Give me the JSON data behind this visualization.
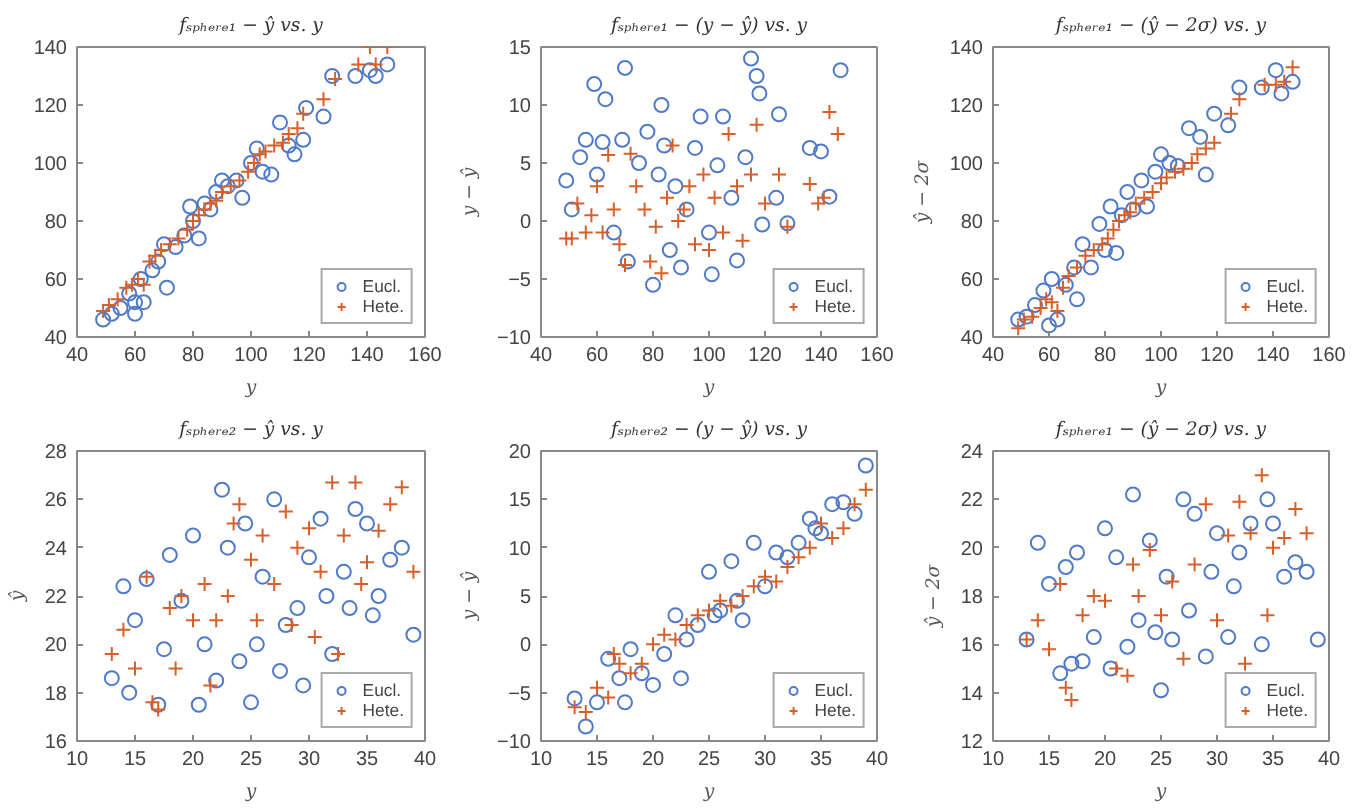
{
  "chart_data": [
    {
      "type": "scatter",
      "title": "fₛₚₕₑᵣₑ₁ − ŷ vs. y",
      "xlabel": "y",
      "xlim": [
        40,
        160
      ],
      "xticks": [
        40,
        60,
        80,
        100,
        120,
        140,
        160
      ],
      "ylim": [
        40,
        140
      ],
      "yticks": [
        40,
        60,
        80,
        100,
        120,
        140
      ],
      "legend": "bottom right",
      "series": [
        {
          "name": "Eucl.",
          "color": "#4f79c9",
          "marker": "circle",
          "x": [
            49,
            52,
            55,
            58,
            60,
            60,
            62,
            63,
            66,
            68,
            70,
            71,
            74,
            77,
            79,
            80,
            82,
            84,
            86,
            88,
            90,
            92,
            95,
            97,
            100,
            102,
            104,
            107,
            110,
            113,
            115,
            118,
            119,
            125,
            128,
            136,
            141,
            143,
            147
          ],
          "values": [
            46,
            48,
            50,
            55,
            48,
            52,
            60,
            52,
            63,
            66,
            72,
            57,
            71,
            75,
            85,
            80,
            74,
            86,
            84,
            90,
            94,
            92,
            94,
            88,
            100,
            105,
            97,
            96,
            114,
            106,
            103,
            108,
            119,
            116,
            130,
            130,
            132,
            130,
            134
          ]
        },
        {
          "name": "Hete.",
          "color": "#d95f2a",
          "marker": "cross",
          "x": [
            49,
            51,
            54,
            57,
            59,
            61,
            63,
            65,
            67,
            69,
            72,
            75,
            78,
            80,
            82,
            84,
            86,
            88,
            90,
            93,
            96,
            99,
            101,
            103,
            105,
            108,
            111,
            113,
            116,
            118,
            125,
            129,
            137,
            141,
            143,
            147
          ],
          "values": [
            49,
            51,
            53,
            57,
            58,
            60,
            58,
            66,
            68,
            70,
            72,
            74,
            77,
            80,
            82,
            84,
            86,
            87,
            90,
            92,
            94,
            97,
            100,
            103,
            104,
            106,
            107,
            110,
            112,
            117,
            122,
            129,
            134,
            140,
            134,
            140
          ]
        }
      ]
    },
    {
      "type": "scatter",
      "title": "fₛₚₕₑᵣₑ₁ − (y − ŷ) vs. y",
      "xlabel": "y",
      "ylabel": "y − ŷ",
      "xlim": [
        40,
        160
      ],
      "xticks": [
        40,
        60,
        80,
        100,
        120,
        140,
        160
      ],
      "ylim": [
        -10,
        15
      ],
      "yticks": [
        -10,
        -5,
        0,
        5,
        10,
        15
      ],
      "legend": "bottom right",
      "series": [
        {
          "name": "Eucl.",
          "color": "#4f79c9",
          "marker": "circle",
          "x": [
            49,
            51,
            54,
            56,
            59,
            60,
            62,
            63,
            66,
            69,
            70,
            71,
            75,
            78,
            80,
            82,
            83,
            84,
            86,
            88,
            90,
            92,
            95,
            97,
            100,
            101,
            103,
            105,
            108,
            110,
            113,
            115,
            117,
            118,
            119,
            124,
            125,
            128,
            136,
            140,
            143,
            147
          ],
          "values": [
            3.5,
            1,
            5.5,
            7,
            11.8,
            4,
            6.8,
            10.5,
            -1,
            7,
            13.2,
            -3.5,
            5,
            7.7,
            -5.5,
            4,
            10,
            6.5,
            -2.5,
            3,
            -4,
            1,
            6.3,
            9,
            -1,
            -4.6,
            4.8,
            9,
            2,
            -3.4,
            5.5,
            14,
            12.5,
            11,
            -0.3,
            2,
            9.2,
            -0.2,
            6.3,
            6,
            2.1,
            13
          ]
        },
        {
          "name": "Hete.",
          "color": "#d95f2a",
          "marker": "cross",
          "x": [
            49,
            51,
            53,
            56,
            58,
            60,
            62,
            64,
            66,
            68,
            70,
            72,
            74,
            77,
            79,
            81,
            83,
            85,
            87,
            89,
            91,
            93,
            95,
            98,
            100,
            102,
            105,
            107,
            110,
            112,
            115,
            117,
            120,
            125,
            128,
            136,
            139,
            141,
            143,
            146
          ],
          "values": [
            -1.5,
            -1.5,
            1.5,
            -1,
            0.5,
            3,
            -1,
            5.7,
            1,
            -2,
            -3.8,
            5.8,
            3,
            1,
            -3.5,
            -0.5,
            -4.5,
            2,
            6.5,
            0,
            1,
            3,
            -2,
            4,
            -2.5,
            2,
            -1,
            7.5,
            3,
            -1.7,
            4,
            8.3,
            1.5,
            4,
            -0.5,
            3.2,
            1.5,
            2,
            9.4,
            7.5
          ]
        }
      ]
    },
    {
      "type": "scatter",
      "title": "fₛₚₕₑᵣₑ₁ − (ŷ − 2σ) vs. y",
      "xlabel": "y",
      "ylabel": "ŷ − 2σ",
      "xlim": [
        40,
        160
      ],
      "xticks": [
        40,
        60,
        80,
        100,
        120,
        140,
        160
      ],
      "ylim": [
        40,
        140
      ],
      "yticks": [
        40,
        60,
        80,
        100,
        120,
        140
      ],
      "legend": "bottom right",
      "series": [
        {
          "name": "Eucl.",
          "color": "#4f79c9",
          "marker": "circle",
          "x": [
            49,
            52,
            55,
            58,
            60,
            61,
            63,
            66,
            69,
            70,
            72,
            75,
            78,
            80,
            82,
            84,
            86,
            88,
            90,
            93,
            95,
            98,
            100,
            103,
            106,
            110,
            114,
            116,
            119,
            124,
            128,
            136,
            141,
            143,
            147
          ],
          "values": [
            46,
            47,
            51,
            56,
            44,
            60,
            46,
            58,
            64,
            53,
            72,
            64,
            79,
            70,
            85,
            69,
            82,
            90,
            84,
            94,
            85,
            97,
            103,
            100,
            99,
            112,
            109,
            96,
            117,
            113,
            126,
            126,
            132,
            124,
            128
          ]
        },
        {
          "name": "Hete.",
          "color": "#d95f2a",
          "marker": "cross",
          "x": [
            49,
            51,
            54,
            57,
            59,
            61,
            63,
            65,
            67,
            70,
            73,
            76,
            79,
            81,
            83,
            85,
            87,
            89,
            91,
            94,
            97,
            100,
            102,
            105,
            108,
            111,
            113,
            116,
            119,
            125,
            128,
            137,
            141,
            144,
            147
          ],
          "values": [
            43,
            46,
            47,
            50,
            53,
            52,
            49,
            57,
            61,
            64,
            68,
            70,
            72,
            74,
            77,
            80,
            82,
            83,
            86,
            88,
            90,
            93,
            95,
            97,
            98,
            100,
            103,
            105,
            107,
            117,
            122,
            127,
            127,
            128,
            133
          ]
        }
      ]
    },
    {
      "type": "scatter",
      "title": "fₛₚₕₑᵣₑ₂ − ŷ vs. y",
      "xlabel": "y",
      "ylabel": "ŷ",
      "xlim": [
        10,
        40
      ],
      "xticks": [
        10,
        15,
        20,
        25,
        30,
        35,
        40
      ],
      "ylim": [
        16,
        28
      ],
      "yticks": [
        16,
        18,
        20,
        22,
        24,
        26,
        28
      ],
      "legend": "bottom right",
      "series": [
        {
          "name": "Eucl.",
          "color": "#4f79c9",
          "marker": "circle",
          "x": [
            13,
            14,
            14.5,
            15,
            16,
            17,
            17.5,
            18,
            19,
            20,
            20.5,
            21,
            22,
            22.5,
            23,
            24,
            24.5,
            25,
            25.5,
            26,
            27,
            27.5,
            28,
            29,
            29.5,
            30,
            31,
            31.5,
            32,
            33,
            33.5,
            34,
            35,
            35.5,
            36,
            37,
            38,
            39
          ],
          "values": [
            18.6,
            22.4,
            18,
            21,
            22.7,
            17.5,
            19.8,
            23.7,
            21.8,
            24.5,
            17.5,
            20,
            18.5,
            26.4,
            24,
            19.3,
            25,
            17.6,
            20,
            22.8,
            26,
            18.9,
            20.8,
            21.5,
            18.3,
            23.6,
            25.2,
            22,
            19.6,
            23,
            21.5,
            25.6,
            25,
            21.2,
            22,
            23.5,
            24,
            20.4
          ]
        },
        {
          "name": "Hete.",
          "color": "#d95f2a",
          "marker": "cross",
          "x": [
            13,
            14,
            15,
            16,
            16.5,
            17,
            18,
            18.5,
            19,
            20,
            21,
            21.5,
            22,
            23,
            23.5,
            24,
            25,
            25.5,
            26,
            27,
            28,
            28.5,
            29,
            30,
            30.5,
            31,
            32,
            32.5,
            33,
            34,
            34.5,
            35,
            36,
            37,
            38,
            39
          ],
          "values": [
            19.6,
            20.6,
            19,
            22.8,
            17.6,
            17.3,
            21.5,
            19,
            22,
            21,
            22.5,
            18.3,
            21,
            22,
            25,
            25.8,
            23.5,
            21,
            24.5,
            22.5,
            25.5,
            20.8,
            24,
            24.8,
            20.3,
            23,
            26.7,
            19.6,
            24.5,
            26.7,
            22.5,
            23.4,
            24.7,
            25.8,
            26.5,
            23
          ]
        }
      ]
    },
    {
      "type": "scatter",
      "title": "fₛₚₕₑᵣₑ₂ − (y − ŷ) vs. y",
      "xlabel": "y",
      "ylabel": "y − ŷ",
      "xlim": [
        10,
        40
      ],
      "xticks": [
        10,
        15,
        20,
        25,
        30,
        35,
        40
      ],
      "ylim": [
        -10,
        20
      ],
      "yticks": [
        -10,
        -5,
        0,
        5,
        10,
        15,
        20
      ],
      "legend": "bottom right",
      "series": [
        {
          "name": "Eucl.",
          "color": "#4f79c9",
          "marker": "circle",
          "x": [
            13,
            14,
            15,
            16,
            17,
            17.5,
            18,
            19,
            20,
            21,
            22,
            22.5,
            23,
            24,
            25,
            25.5,
            26,
            27,
            27.5,
            28,
            29,
            30,
            31,
            32,
            33,
            34,
            34.5,
            35,
            36,
            37,
            38,
            39
          ],
          "values": [
            -5.6,
            -8.5,
            -6,
            -1.5,
            -3.5,
            -6,
            -0.5,
            -3,
            -4.2,
            -1,
            3,
            -3.5,
            0.5,
            2,
            7.5,
            3,
            3.5,
            8.6,
            4.5,
            2.5,
            10.5,
            6,
            9.5,
            9,
            10.5,
            13,
            12,
            11.5,
            14.5,
            14.7,
            13.5,
            18.5
          ]
        },
        {
          "name": "Hete.",
          "color": "#d95f2a",
          "marker": "cross",
          "x": [
            13,
            14,
            15,
            16,
            16.5,
            17,
            18,
            19,
            20,
            21,
            22,
            23,
            24,
            25,
            26,
            27,
            28,
            29,
            30,
            31,
            32,
            33,
            34,
            35,
            36,
            37,
            38,
            39
          ],
          "values": [
            -6.5,
            -7,
            -4.5,
            -5.5,
            -1,
            -2,
            -3,
            -2,
            0,
            1,
            0.5,
            2,
            3,
            3.5,
            4.5,
            4,
            5,
            6,
            7,
            6.5,
            8,
            9,
            10,
            12.5,
            11,
            12,
            14.5,
            16
          ]
        }
      ]
    },
    {
      "type": "scatter",
      "title": "fₛₚₕₑᵣₑ₁ − (ŷ − 2σ) vs. y",
      "xlabel": "y",
      "ylabel": "ŷ − 2σ",
      "xlim": [
        10,
        40
      ],
      "xticks": [
        10,
        15,
        20,
        25,
        30,
        35,
        40
      ],
      "ylim": [
        12,
        24
      ],
      "yticks": [
        12,
        14,
        16,
        18,
        20,
        22,
        24
      ],
      "legend": "bottom right",
      "series": [
        {
          "name": "Eucl.",
          "color": "#4f79c9",
          "marker": "circle",
          "x": [
            13,
            14,
            15,
            16,
            16.5,
            17,
            17.5,
            18,
            19,
            20,
            20.5,
            21,
            22,
            22.5,
            23,
            24,
            24.5,
            25,
            25.5,
            26,
            27,
            27.5,
            28,
            29,
            29.5,
            30,
            31,
            31.5,
            32,
            33,
            34,
            34.5,
            35,
            36,
            37,
            38,
            39
          ],
          "values": [
            16.2,
            20.2,
            18.5,
            14.8,
            19.2,
            15.2,
            19.8,
            15.3,
            16.3,
            20.8,
            15,
            19.6,
            15.9,
            22.2,
            17,
            20.3,
            16.5,
            14.1,
            18.8,
            16.2,
            22,
            17.4,
            21.4,
            15.5,
            19,
            20.6,
            16.3,
            18.4,
            19.8,
            21,
            16,
            22,
            21,
            18.8,
            19.4,
            19,
            16.2
          ]
        },
        {
          "name": "Hete.",
          "color": "#d95f2a",
          "marker": "cross",
          "x": [
            13,
            14,
            15,
            16,
            16.5,
            17,
            18,
            19,
            20,
            21,
            22,
            22.5,
            23,
            24,
            25,
            26,
            27,
            28,
            29,
            30,
            31,
            32,
            32.5,
            33,
            34,
            34.5,
            35,
            36,
            37,
            38
          ],
          "values": [
            16.2,
            17,
            15.8,
            18.5,
            14.2,
            13.7,
            17.2,
            18,
            17.8,
            15,
            14.7,
            19.3,
            18,
            19.9,
            17.2,
            18.6,
            15.4,
            19.3,
            21.8,
            17,
            20.5,
            21.9,
            15.2,
            20.6,
            23,
            17.2,
            20,
            20.4,
            21.6,
            20.6
          ]
        }
      ]
    }
  ]
}
